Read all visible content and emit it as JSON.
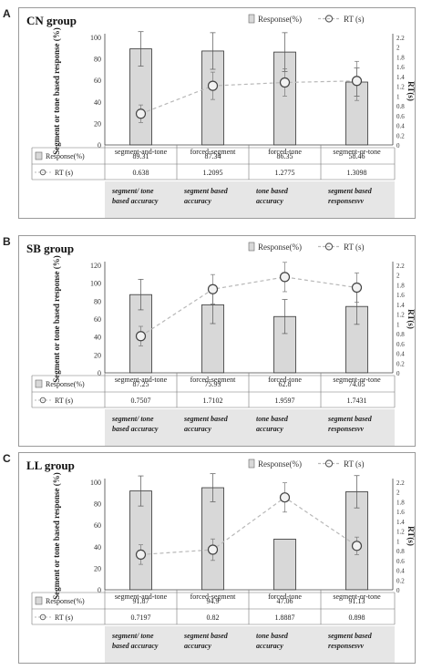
{
  "chart_data": [
    {
      "type": "bar",
      "panel_letter": "A",
      "title": "CN group",
      "categories": [
        "segment-and-tone",
        "forced-segment",
        "forced-tone",
        "segment-or-tone"
      ],
      "ylabel": "Segment or tone based response (%)",
      "y2label": "RT(s)",
      "ylim": [
        0,
        100
      ],
      "y2lim": [
        0,
        2.2
      ],
      "yticks": [
        "0",
        "20",
        "40",
        "60",
        "80",
        "100"
      ],
      "y2ticks": [
        "0",
        "0.2",
        "0.4",
        "0.6",
        "0.8",
        "1",
        "1.2",
        "1.4",
        "1.6",
        "1.8",
        "2",
        "2.2"
      ],
      "series": [
        {
          "name": "Response(%)",
          "type": "bar",
          "values": [
            89.31,
            87.34,
            86.35,
            58.46
          ],
          "value_labels": [
            "89.31",
            "87.34",
            "86.35",
            "58.46"
          ],
          "error": [
            16,
            17,
            18,
            13
          ]
        },
        {
          "name": "RT (s)",
          "type": "line",
          "axis": "right",
          "values": [
            0.638,
            1.2095,
            1.2775,
            1.3098
          ],
          "value_labels": [
            "0.638",
            "1.2095",
            "1.2775",
            "1.3098"
          ],
          "error": [
            0.18,
            0.28,
            0.28,
            0.4
          ]
        }
      ],
      "annotations": [
        "segment/ tone based accuracy",
        "segment based accuracy",
        "tone based accuracy",
        "segment based responsesvv"
      ],
      "legend": "top",
      "colors": {
        "bar_fill": "#d8d8d8",
        "line": "#b8b8b8",
        "annotation_bg": "#e6e6e6"
      }
    },
    {
      "type": "bar",
      "panel_letter": "B",
      "title": "SB group",
      "categories": [
        "segment-and-tone",
        "forced-segment",
        "forced-tone",
        "segment-or-tone"
      ],
      "ylabel": "Segment or tone based response (%)",
      "y2label": "RT(s)",
      "ylim": [
        0,
        120
      ],
      "y2lim": [
        0,
        2.2
      ],
      "yticks": [
        "0",
        "20",
        "40",
        "60",
        "80",
        "100",
        "120"
      ],
      "y2ticks": [
        "0",
        "0.2",
        "0.4",
        "0.6",
        "0.8",
        "1",
        "1.2",
        "1.4",
        "1.6",
        "1.8",
        "2",
        "2.2"
      ],
      "series": [
        {
          "name": "Response(%)",
          "type": "bar",
          "values": [
            87.25,
            75.93,
            62.8,
            74.05
          ],
          "value_labels": [
            "87.25",
            "75.93",
            "62.8",
            "74.05"
          ],
          "error": [
            17,
            21,
            19,
            20
          ]
        },
        {
          "name": "RT (s)",
          "type": "line",
          "axis": "right",
          "values": [
            0.7507,
            1.7102,
            1.9597,
            1.7431
          ],
          "value_labels": [
            "0.7507",
            "1.7102",
            "1.9597",
            "1.7431"
          ],
          "error": [
            0.2,
            0.3,
            0.3,
            0.3
          ]
        }
      ],
      "annotations": [
        "segment/ tone based accuracy",
        "segment based accuracy",
        "tone based accuracy",
        "segment based responsesvv"
      ],
      "legend": "top",
      "colors": {
        "bar_fill": "#d8d8d8",
        "line": "#b8b8b8",
        "annotation_bg": "#e6e6e6"
      }
    },
    {
      "type": "bar",
      "panel_letter": "C",
      "title": "LL group",
      "categories": [
        "segment-and-tone",
        "forced-segment",
        "forced-tone",
        "segment-or-tone"
      ],
      "ylabel": "Segment or tone based response (%)",
      "y2label": "RT(s)",
      "ylim": [
        0,
        100
      ],
      "y2lim": [
        0,
        2.2
      ],
      "yticks": [
        "0",
        "20",
        "40",
        "60",
        "80",
        "100"
      ],
      "y2ticks": [
        "0",
        "0.2",
        "0.4",
        "0.6",
        "0.8",
        "1",
        "1.2",
        "1.4",
        "1.6",
        "1.8",
        "2",
        "2.2"
      ],
      "series": [
        {
          "name": "Response(%)",
          "type": "bar",
          "values": [
            91.87,
            94.9,
            47.06,
            91.13
          ],
          "value_labels": [
            "91.87",
            "94.9",
            "47.06",
            "91.13"
          ],
          "error": [
            14,
            13,
            0,
            15
          ]
        },
        {
          "name": "RT (s)",
          "type": "line",
          "axis": "right",
          "values": [
            0.7197,
            0.82,
            1.8887,
            0.898
          ],
          "value_labels": [
            "0.7197",
            "0.82",
            "1.8887",
            "0.898"
          ],
          "error": [
            0.2,
            0.22,
            0.3,
            0.18
          ]
        }
      ],
      "annotations": [
        "segment/ tone based accuracy",
        "segment based accuracy",
        "tone based accuracy",
        "segment based responsesvv"
      ],
      "legend": "top",
      "colors": {
        "bar_fill": "#d8d8d8",
        "line": "#b8b8b8",
        "annotation_bg": "#e6e6e6"
      }
    }
  ]
}
